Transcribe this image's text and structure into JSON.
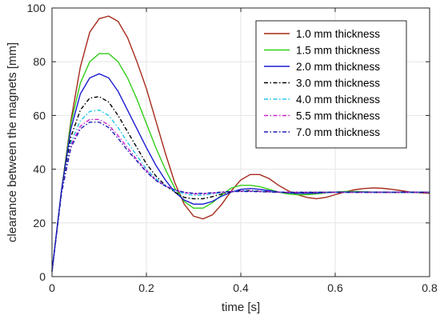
{
  "chart_data": {
    "type": "line",
    "title": "",
    "xlabel": "time [s]",
    "ylabel": "clearance between the magnets [mm]",
    "xlim": [
      0,
      0.8
    ],
    "ylim": [
      0,
      100
    ],
    "xticks": [
      0,
      0.2,
      0.4,
      0.6,
      0.8
    ],
    "xtick_labels": [
      "0",
      "0.2",
      "0.4",
      "0.6",
      "0.8"
    ],
    "yticks": [
      0,
      20,
      40,
      60,
      80,
      100
    ],
    "ytick_labels": [
      "0",
      "20",
      "40",
      "60",
      "80",
      "100"
    ],
    "grid": true,
    "legend_position": "top-right",
    "series": [
      {
        "name": "1.0 mm thickness",
        "color": "#a52a1c",
        "dash": "solid",
        "points": [
          [
            0,
            2
          ],
          [
            0.02,
            32
          ],
          [
            0.04,
            58
          ],
          [
            0.06,
            78
          ],
          [
            0.08,
            91
          ],
          [
            0.1,
            96
          ],
          [
            0.12,
            97
          ],
          [
            0.14,
            95
          ],
          [
            0.16,
            89
          ],
          [
            0.18,
            80
          ],
          [
            0.2,
            70
          ],
          [
            0.22,
            58
          ],
          [
            0.24,
            46
          ],
          [
            0.26,
            35
          ],
          [
            0.28,
            27
          ],
          [
            0.3,
            22.5
          ],
          [
            0.32,
            21.5
          ],
          [
            0.34,
            23
          ],
          [
            0.36,
            27
          ],
          [
            0.38,
            32
          ],
          [
            0.4,
            36
          ],
          [
            0.42,
            38
          ],
          [
            0.44,
            38
          ],
          [
            0.46,
            36.5
          ],
          [
            0.48,
            34
          ],
          [
            0.5,
            32
          ],
          [
            0.52,
            30.5
          ],
          [
            0.54,
            29.5
          ],
          [
            0.56,
            29
          ],
          [
            0.58,
            29.5
          ],
          [
            0.6,
            30.5
          ],
          [
            0.62,
            31.5
          ],
          [
            0.64,
            32.3
          ],
          [
            0.66,
            32.8
          ],
          [
            0.68,
            33
          ],
          [
            0.7,
            32.9
          ],
          [
            0.72,
            32.5
          ],
          [
            0.74,
            32
          ],
          [
            0.76,
            31.5
          ],
          [
            0.78,
            31.2
          ],
          [
            0.8,
            31
          ]
        ]
      },
      {
        "name": "1.5 mm thickness",
        "color": "#33cc1a",
        "dash": "solid",
        "points": [
          [
            0,
            2
          ],
          [
            0.02,
            32
          ],
          [
            0.04,
            57
          ],
          [
            0.06,
            72
          ],
          [
            0.08,
            80
          ],
          [
            0.1,
            83
          ],
          [
            0.12,
            83
          ],
          [
            0.14,
            80
          ],
          [
            0.16,
            74
          ],
          [
            0.18,
            66
          ],
          [
            0.2,
            57
          ],
          [
            0.22,
            48
          ],
          [
            0.24,
            40
          ],
          [
            0.26,
            33
          ],
          [
            0.28,
            28
          ],
          [
            0.3,
            25.5
          ],
          [
            0.32,
            25.5
          ],
          [
            0.34,
            27.5
          ],
          [
            0.36,
            30.5
          ],
          [
            0.38,
            33
          ],
          [
            0.4,
            34
          ],
          [
            0.42,
            34
          ],
          [
            0.44,
            33.5
          ],
          [
            0.46,
            32.5
          ],
          [
            0.48,
            31.5
          ],
          [
            0.5,
            30.8
          ],
          [
            0.52,
            30.5
          ],
          [
            0.54,
            30.5
          ],
          [
            0.56,
            30.8
          ],
          [
            0.58,
            31.2
          ],
          [
            0.6,
            31.5
          ],
          [
            0.62,
            31.7
          ],
          [
            0.64,
            31.7
          ],
          [
            0.66,
            31.6
          ],
          [
            0.68,
            31.5
          ],
          [
            0.7,
            31.4
          ],
          [
            0.72,
            31.3
          ],
          [
            0.74,
            31.3
          ],
          [
            0.76,
            31.3
          ],
          [
            0.78,
            31.4
          ],
          [
            0.8,
            31.4
          ]
        ]
      },
      {
        "name": "2.0 mm thickness",
        "color": "#1a1ad1",
        "dash": "solid",
        "points": [
          [
            0,
            2
          ],
          [
            0.02,
            32
          ],
          [
            0.04,
            55
          ],
          [
            0.06,
            68
          ],
          [
            0.08,
            74
          ],
          [
            0.1,
            75.5
          ],
          [
            0.12,
            74
          ],
          [
            0.14,
            69
          ],
          [
            0.16,
            62
          ],
          [
            0.18,
            55
          ],
          [
            0.2,
            48
          ],
          [
            0.22,
            41.5
          ],
          [
            0.24,
            36
          ],
          [
            0.26,
            31.5
          ],
          [
            0.28,
            28.5
          ],
          [
            0.3,
            27
          ],
          [
            0.32,
            27
          ],
          [
            0.34,
            28
          ],
          [
            0.36,
            30
          ],
          [
            0.38,
            31.5
          ],
          [
            0.4,
            32.5
          ],
          [
            0.42,
            32.8
          ],
          [
            0.44,
            32.5
          ],
          [
            0.46,
            32
          ],
          [
            0.48,
            31.5
          ],
          [
            0.5,
            31.2
          ],
          [
            0.52,
            31
          ],
          [
            0.54,
            31
          ],
          [
            0.56,
            31.1
          ],
          [
            0.58,
            31.3
          ],
          [
            0.6,
            31.4
          ],
          [
            0.62,
            31.5
          ],
          [
            0.64,
            31.5
          ],
          [
            0.66,
            31.5
          ],
          [
            0.68,
            31.4
          ],
          [
            0.7,
            31.4
          ],
          [
            0.72,
            31.4
          ],
          [
            0.74,
            31.4
          ],
          [
            0.76,
            31.4
          ],
          [
            0.78,
            31.4
          ],
          [
            0.8,
            31.4
          ]
        ]
      },
      {
        "name": "3.0 mm thickness",
        "color": "#000000",
        "dash": "dashdot",
        "points": [
          [
            0,
            2
          ],
          [
            0.02,
            31
          ],
          [
            0.04,
            52
          ],
          [
            0.06,
            62
          ],
          [
            0.08,
            66.5
          ],
          [
            0.1,
            67
          ],
          [
            0.12,
            65
          ],
          [
            0.14,
            60
          ],
          [
            0.16,
            54
          ],
          [
            0.18,
            48
          ],
          [
            0.2,
            42
          ],
          [
            0.22,
            37.5
          ],
          [
            0.24,
            34
          ],
          [
            0.26,
            31.5
          ],
          [
            0.28,
            29.5
          ],
          [
            0.3,
            29
          ],
          [
            0.32,
            29
          ],
          [
            0.34,
            29.8
          ],
          [
            0.36,
            30.8
          ],
          [
            0.38,
            31.6
          ],
          [
            0.4,
            32
          ],
          [
            0.42,
            32
          ],
          [
            0.44,
            31.8
          ],
          [
            0.46,
            31.6
          ],
          [
            0.48,
            31.4
          ],
          [
            0.5,
            31.3
          ],
          [
            0.52,
            31.3
          ],
          [
            0.54,
            31.3
          ],
          [
            0.56,
            31.4
          ],
          [
            0.58,
            31.4
          ],
          [
            0.6,
            31.4
          ],
          [
            0.62,
            31.4
          ],
          [
            0.64,
            31.4
          ],
          [
            0.66,
            31.4
          ],
          [
            0.68,
            31.4
          ],
          [
            0.7,
            31.4
          ],
          [
            0.72,
            31.4
          ],
          [
            0.74,
            31.4
          ],
          [
            0.76,
            31.4
          ],
          [
            0.78,
            31.4
          ],
          [
            0.8,
            31.4
          ]
        ]
      },
      {
        "name": "4.0 mm thickness",
        "color": "#22c8e6",
        "dash": "dashdot",
        "points": [
          [
            0,
            2
          ],
          [
            0.02,
            31
          ],
          [
            0.04,
            50
          ],
          [
            0.06,
            58
          ],
          [
            0.08,
            61.5
          ],
          [
            0.1,
            62
          ],
          [
            0.12,
            60
          ],
          [
            0.14,
            55.5
          ],
          [
            0.16,
            50
          ],
          [
            0.18,
            45
          ],
          [
            0.2,
            40
          ],
          [
            0.22,
            36.5
          ],
          [
            0.24,
            33.8
          ],
          [
            0.26,
            32
          ],
          [
            0.28,
            30.8
          ],
          [
            0.3,
            30.3
          ],
          [
            0.32,
            30.3
          ],
          [
            0.34,
            30.8
          ],
          [
            0.36,
            31.3
          ],
          [
            0.38,
            31.7
          ],
          [
            0.4,
            31.9
          ],
          [
            0.42,
            31.9
          ],
          [
            0.44,
            31.8
          ],
          [
            0.46,
            31.6
          ],
          [
            0.48,
            31.5
          ],
          [
            0.5,
            31.4
          ],
          [
            0.52,
            31.4
          ],
          [
            0.54,
            31.4
          ],
          [
            0.56,
            31.4
          ],
          [
            0.58,
            31.4
          ],
          [
            0.6,
            31.4
          ],
          [
            0.62,
            31.4
          ],
          [
            0.64,
            31.4
          ],
          [
            0.66,
            31.4
          ],
          [
            0.68,
            31.4
          ],
          [
            0.7,
            31.4
          ],
          [
            0.72,
            31.4
          ],
          [
            0.74,
            31.4
          ],
          [
            0.76,
            31.4
          ],
          [
            0.78,
            31.4
          ],
          [
            0.8,
            31.4
          ]
        ]
      },
      {
        "name": "5.5 mm thickness",
        "color": "#cc22cc",
        "dash": "dashdot",
        "points": [
          [
            0,
            2
          ],
          [
            0.02,
            31
          ],
          [
            0.04,
            49
          ],
          [
            0.06,
            56
          ],
          [
            0.08,
            58.5
          ],
          [
            0.1,
            58.5
          ],
          [
            0.12,
            56.5
          ],
          [
            0.14,
            52.5
          ],
          [
            0.16,
            48
          ],
          [
            0.18,
            43.5
          ],
          [
            0.2,
            39.5
          ],
          [
            0.22,
            36
          ],
          [
            0.24,
            33.8
          ],
          [
            0.26,
            32.3
          ],
          [
            0.28,
            31.3
          ],
          [
            0.3,
            30.8
          ],
          [
            0.32,
            30.8
          ],
          [
            0.34,
            31.1
          ],
          [
            0.36,
            31.4
          ],
          [
            0.38,
            31.7
          ],
          [
            0.4,
            31.8
          ],
          [
            0.42,
            31.8
          ],
          [
            0.44,
            31.7
          ],
          [
            0.46,
            31.6
          ],
          [
            0.48,
            31.5
          ],
          [
            0.5,
            31.4
          ],
          [
            0.52,
            31.4
          ],
          [
            0.54,
            31.4
          ],
          [
            0.56,
            31.4
          ],
          [
            0.58,
            31.4
          ],
          [
            0.6,
            31.4
          ],
          [
            0.62,
            31.4
          ],
          [
            0.64,
            31.4
          ],
          [
            0.66,
            31.4
          ],
          [
            0.68,
            31.4
          ],
          [
            0.7,
            31.4
          ],
          [
            0.72,
            31.4
          ],
          [
            0.74,
            31.4
          ],
          [
            0.76,
            31.4
          ],
          [
            0.78,
            31.4
          ],
          [
            0.8,
            31.4
          ]
        ]
      },
      {
        "name": "7.0 mm thickness",
        "color": "#1a1ab3",
        "dash": "dashdot",
        "points": [
          [
            0,
            2
          ],
          [
            0.02,
            31
          ],
          [
            0.04,
            48
          ],
          [
            0.06,
            55
          ],
          [
            0.08,
            57.5
          ],
          [
            0.1,
            57.5
          ],
          [
            0.12,
            55.5
          ],
          [
            0.14,
            51.5
          ],
          [
            0.16,
            47
          ],
          [
            0.18,
            43
          ],
          [
            0.2,
            39
          ],
          [
            0.22,
            35.8
          ],
          [
            0.24,
            33.7
          ],
          [
            0.26,
            32.3
          ],
          [
            0.28,
            31.4
          ],
          [
            0.3,
            31
          ],
          [
            0.32,
            31
          ],
          [
            0.34,
            31.2
          ],
          [
            0.36,
            31.5
          ],
          [
            0.38,
            31.7
          ],
          [
            0.4,
            31.7
          ],
          [
            0.42,
            31.7
          ],
          [
            0.44,
            31.6
          ],
          [
            0.46,
            31.5
          ],
          [
            0.48,
            31.4
          ],
          [
            0.5,
            31.4
          ],
          [
            0.52,
            31.4
          ],
          [
            0.54,
            31.4
          ],
          [
            0.56,
            31.4
          ],
          [
            0.58,
            31.4
          ],
          [
            0.6,
            31.4
          ],
          [
            0.62,
            31.4
          ],
          [
            0.64,
            31.4
          ],
          [
            0.66,
            31.4
          ],
          [
            0.68,
            31.4
          ],
          [
            0.7,
            31.4
          ],
          [
            0.72,
            31.4
          ],
          [
            0.74,
            31.4
          ],
          [
            0.76,
            31.4
          ],
          [
            0.78,
            31.4
          ],
          [
            0.8,
            31.4
          ]
        ]
      }
    ]
  }
}
